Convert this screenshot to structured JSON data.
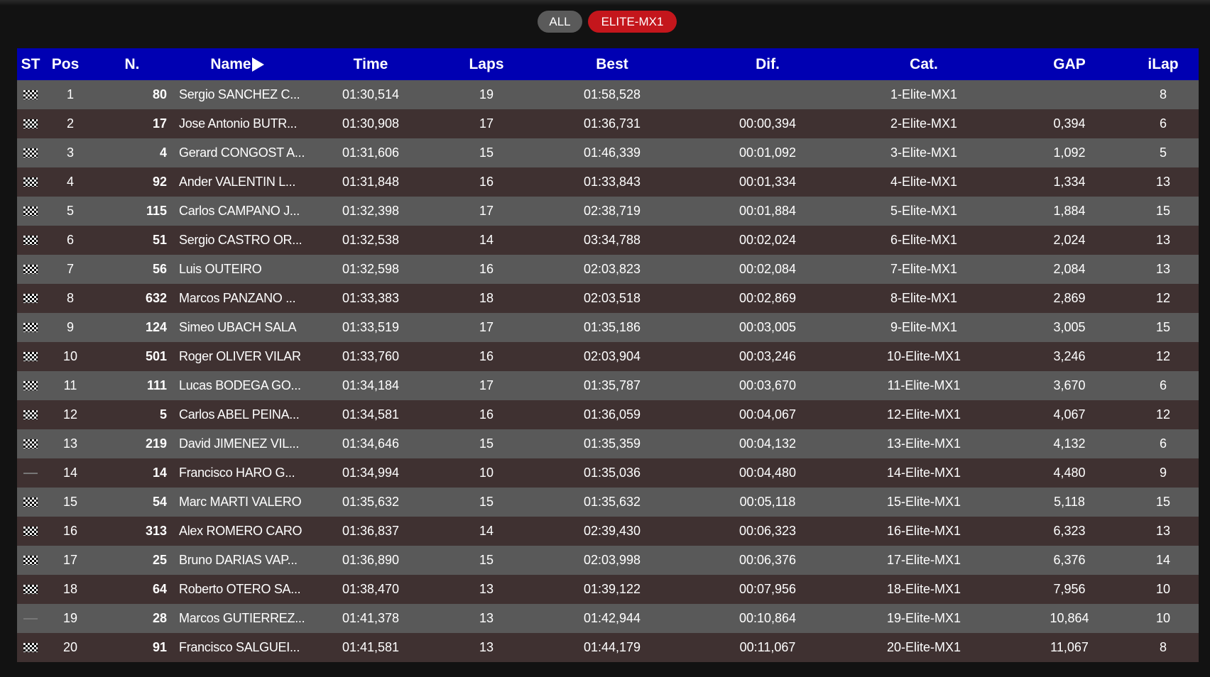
{
  "filters": [
    {
      "label": "ALL",
      "active": false
    },
    {
      "label": "ELITE-MX1",
      "active": true,
      "color": "#c4161c"
    }
  ],
  "colors": {
    "header": "#0000b2",
    "row_odd": "#595959",
    "row_even": "#3f3131"
  },
  "columns": {
    "st": "ST",
    "pos": "Pos",
    "num": "N.",
    "name": "Name",
    "time": "Time",
    "laps": "Laps",
    "best": "Best",
    "dif": "Dif.",
    "cat": "Cat.",
    "gap": "GAP",
    "ilap": "iLap"
  },
  "sort_icon": "triangle-right-icon",
  "rows": [
    {
      "st": "finished-flag",
      "pos": "1",
      "num": "80",
      "name": "Sergio SANCHEZ C...",
      "time": "01:30,514",
      "laps": "19",
      "best": "01:58,528",
      "dif": "",
      "cat": "1-Elite-MX1",
      "gap": "",
      "ilap": "8"
    },
    {
      "st": "finished-flag",
      "pos": "2",
      "num": "17",
      "name": "Jose Antonio BUTR...",
      "time": "01:30,908",
      "laps": "17",
      "best": "01:36,731",
      "dif": "00:00,394",
      "cat": "2-Elite-MX1",
      "gap": "0,394",
      "ilap": "6"
    },
    {
      "st": "finished-flag",
      "pos": "3",
      "num": "4",
      "name": "Gerard CONGOST A...",
      "time": "01:31,606",
      "laps": "15",
      "best": "01:46,339",
      "dif": "00:01,092",
      "cat": "3-Elite-MX1",
      "gap": "1,092",
      "ilap": "5"
    },
    {
      "st": "finished-flag",
      "pos": "4",
      "num": "92",
      "name": "Ander VALENTIN L...",
      "time": "01:31,848",
      "laps": "16",
      "best": "01:33,843",
      "dif": "00:01,334",
      "cat": "4-Elite-MX1",
      "gap": "1,334",
      "ilap": "13"
    },
    {
      "st": "finished-flag",
      "pos": "5",
      "num": "115",
      "name": "Carlos CAMPANO J...",
      "time": "01:32,398",
      "laps": "17",
      "best": "02:38,719",
      "dif": "00:01,884",
      "cat": "5-Elite-MX1",
      "gap": "1,884",
      "ilap": "15"
    },
    {
      "st": "finished-flag",
      "pos": "6",
      "num": "51",
      "name": "Sergio CASTRO OR...",
      "time": "01:32,538",
      "laps": "14",
      "best": "03:34,788",
      "dif": "00:02,024",
      "cat": "6-Elite-MX1",
      "gap": "2,024",
      "ilap": "13"
    },
    {
      "st": "finished-flag",
      "pos": "7",
      "num": "56",
      "name": "Luis OUTEIRO",
      "time": "01:32,598",
      "laps": "16",
      "best": "02:03,823",
      "dif": "00:02,084",
      "cat": "7-Elite-MX1",
      "gap": "2,084",
      "ilap": "13"
    },
    {
      "st": "finished-flag",
      "pos": "8",
      "num": "632",
      "name": "Marcos PANZANO ...",
      "time": "01:33,383",
      "laps": "18",
      "best": "02:03,518",
      "dif": "00:02,869",
      "cat": "8-Elite-MX1",
      "gap": "2,869",
      "ilap": "12"
    },
    {
      "st": "finished-flag",
      "pos": "9",
      "num": "124",
      "name": "Simeo UBACH SALA",
      "time": "01:33,519",
      "laps": "17",
      "best": "01:35,186",
      "dif": "00:03,005",
      "cat": "9-Elite-MX1",
      "gap": "3,005",
      "ilap": "15"
    },
    {
      "st": "finished-flag",
      "pos": "10",
      "num": "501",
      "name": "Roger OLIVER VILAR",
      "time": "01:33,760",
      "laps": "16",
      "best": "02:03,904",
      "dif": "00:03,246",
      "cat": "10-Elite-MX1",
      "gap": "3,246",
      "ilap": "12"
    },
    {
      "st": "finished-flag",
      "pos": "11",
      "num": "111",
      "name": "Lucas BODEGA GO...",
      "time": "01:34,184",
      "laps": "17",
      "best": "01:35,787",
      "dif": "00:03,670",
      "cat": "11-Elite-MX1",
      "gap": "3,670",
      "ilap": "6"
    },
    {
      "st": "finished-flag",
      "pos": "12",
      "num": "5",
      "name": "Carlos ABEL PEINA...",
      "time": "01:34,581",
      "laps": "16",
      "best": "01:36,059",
      "dif": "00:04,067",
      "cat": "12-Elite-MX1",
      "gap": "4,067",
      "ilap": "12"
    },
    {
      "st": "finished-flag",
      "pos": "13",
      "num": "219",
      "name": "David JIMENEZ VIL...",
      "time": "01:34,646",
      "laps": "15",
      "best": "01:35,359",
      "dif": "00:04,132",
      "cat": "13-Elite-MX1",
      "gap": "4,132",
      "ilap": "6"
    },
    {
      "st": "dash",
      "pos": "14",
      "num": "14",
      "name": "Francisco HARO G...",
      "time": "01:34,994",
      "laps": "10",
      "best": "01:35,036",
      "dif": "00:04,480",
      "cat": "14-Elite-MX1",
      "gap": "4,480",
      "ilap": "9"
    },
    {
      "st": "finished-flag",
      "pos": "15",
      "num": "54",
      "name": "Marc MARTI VALERO",
      "time": "01:35,632",
      "laps": "15",
      "best": "01:35,632",
      "dif": "00:05,118",
      "cat": "15-Elite-MX1",
      "gap": "5,118",
      "ilap": "15"
    },
    {
      "st": "finished-flag",
      "pos": "16",
      "num": "313",
      "name": "Alex ROMERO CARO",
      "time": "01:36,837",
      "laps": "14",
      "best": "02:39,430",
      "dif": "00:06,323",
      "cat": "16-Elite-MX1",
      "gap": "6,323",
      "ilap": "13"
    },
    {
      "st": "finished-flag",
      "pos": "17",
      "num": "25",
      "name": "Bruno DARIAS VAP...",
      "time": "01:36,890",
      "laps": "15",
      "best": "02:03,998",
      "dif": "00:06,376",
      "cat": "17-Elite-MX1",
      "gap": "6,376",
      "ilap": "14"
    },
    {
      "st": "finished-flag",
      "pos": "18",
      "num": "64",
      "name": "Roberto OTERO SA...",
      "time": "01:38,470",
      "laps": "13",
      "best": "01:39,122",
      "dif": "00:07,956",
      "cat": "18-Elite-MX1",
      "gap": "7,956",
      "ilap": "10"
    },
    {
      "st": "dash",
      "pos": "19",
      "num": "28",
      "name": "Marcos GUTIERREZ...",
      "time": "01:41,378",
      "laps": "13",
      "best": "01:42,944",
      "dif": "00:10,864",
      "cat": "19-Elite-MX1",
      "gap": "10,864",
      "ilap": "10"
    },
    {
      "st": "finished-flag",
      "pos": "20",
      "num": "91",
      "name": "Francisco SALGUEI...",
      "time": "01:41,581",
      "laps": "13",
      "best": "01:44,179",
      "dif": "00:11,067",
      "cat": "20-Elite-MX1",
      "gap": "11,067",
      "ilap": "8"
    }
  ]
}
